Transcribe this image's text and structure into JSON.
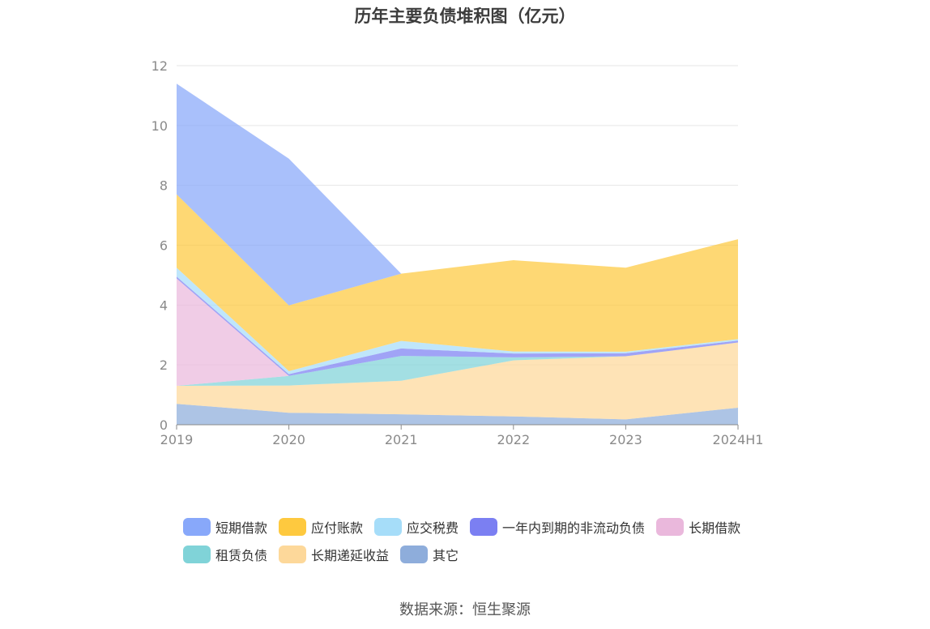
{
  "page": {
    "title": "历年主要负债堆积图（亿元）",
    "source": "数据来源：恒生聚源"
  },
  "chart_data": {
    "type": "area",
    "stacked": true,
    "title": "历年主要负债堆积图（亿元）",
    "categories": [
      "2019",
      "2020",
      "2021",
      "2022",
      "2023",
      "2024H1"
    ],
    "ylim": [
      0,
      12
    ],
    "yticks": [
      "0",
      "2",
      "4",
      "6",
      "8",
      "10",
      "12"
    ],
    "grid": true,
    "legend_position": "bottom",
    "series": [
      {
        "name": "其它",
        "color": "#8eaddb",
        "values": [
          0.7,
          0.4,
          0.35,
          0.28,
          0.18,
          0.57
        ]
      },
      {
        "name": "长期递延收益",
        "color": "#fdd89a",
        "values": [
          0.6,
          0.91,
          1.12,
          1.87,
          2.11,
          2.18
        ]
      },
      {
        "name": "租赁负债",
        "color": "#80d3d8",
        "values": [
          0.0,
          0.32,
          0.83,
          0.1,
          0.0,
          0.0
        ]
      },
      {
        "name": "长期借款",
        "color": "#eab8dc",
        "values": [
          3.59,
          0.0,
          0.0,
          0.0,
          0.0,
          0.0
        ]
      },
      {
        "name": "一年内到期的非流动负债",
        "color": "#7b7ff2",
        "values": [
          0.06,
          0.06,
          0.25,
          0.13,
          0.1,
          0.06
        ]
      },
      {
        "name": "应交税费",
        "color": "#a6ddf9",
        "values": [
          0.3,
          0.1,
          0.25,
          0.07,
          0.05,
          0.05
        ]
      },
      {
        "name": "应付账款",
        "color": "#fec93f",
        "values": [
          2.45,
          2.2,
          2.25,
          3.05,
          2.81,
          3.34
        ]
      },
      {
        "name": "短期借款",
        "color": "#88a8fa",
        "values": [
          3.7,
          4.9,
          0.0,
          0.0,
          0.0,
          0.0
        ]
      }
    ],
    "legend_order": [
      "短期借款",
      "应付账款",
      "应交税费",
      "一年内到期的非流动负债",
      "长期借款",
      "租赁负债",
      "长期递延收益",
      "其它"
    ]
  }
}
